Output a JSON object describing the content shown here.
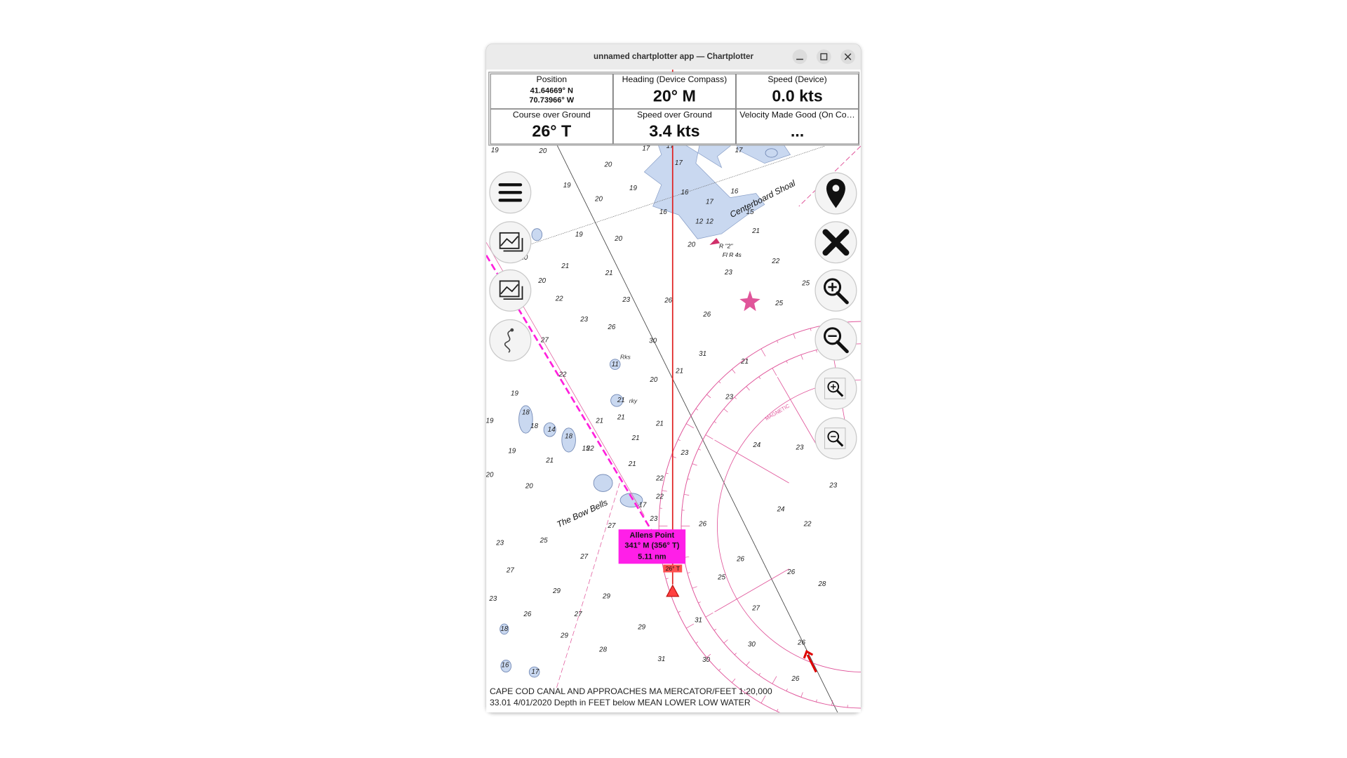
{
  "window": {
    "title": "unnamed chartplotter app — Chartplotter"
  },
  "instruments": [
    {
      "label": "Position",
      "lines": [
        "41.64669° N",
        "70.73966° W"
      ]
    },
    {
      "label": "Heading (Device Compass)",
      "value": "20° M"
    },
    {
      "label": "Speed (Device)",
      "value": "0.0 kts"
    },
    {
      "label": "Course over Ground",
      "value": "26° T"
    },
    {
      "label": "Speed over Ground",
      "value": "3.4 kts"
    },
    {
      "label": "Velocity Made Good (On Co…",
      "value": "..."
    }
  ],
  "waypoint": {
    "name": "Allens Point",
    "bearing": "341° M (356° T)",
    "distance": "5.11 nm"
  },
  "heading_marker": "26° T",
  "chart_labels": {
    "shoal": "Centerboard Shoal",
    "bells": "The Bow Bells",
    "light_name": "R \"2\"",
    "light_char": "Fl R 4s",
    "rose": "MAGNETIC",
    "rocks": "Rks",
    "rocky": "rky"
  },
  "soundings": [
    "19",
    "20",
    "19",
    "20",
    "20",
    "19",
    "17",
    "17",
    "17",
    "16",
    "16",
    "17",
    "16",
    "17",
    "15",
    "21",
    "20",
    "23",
    "22",
    "25",
    "25",
    "19",
    "20",
    "20",
    "20",
    "21",
    "21",
    "22",
    "23",
    "26",
    "23",
    "26",
    "30",
    "26",
    "31",
    "21",
    "27",
    "22",
    "20",
    "23",
    "21",
    "24",
    "23",
    "23",
    "19",
    "19",
    "21",
    "21",
    "21",
    "21",
    "21",
    "23",
    "22",
    "21",
    "19",
    "20",
    "20",
    "22",
    "22",
    "21",
    "23",
    "27",
    "26",
    "23",
    "25",
    "27",
    "27",
    "25",
    "26",
    "26",
    "28",
    "24",
    "22",
    "29",
    "29",
    "23",
    "26",
    "27",
    "31",
    "27",
    "18",
    "29",
    "29",
    "28",
    "30",
    "30",
    "26",
    "31",
    "16",
    "17",
    "26",
    "18",
    "14",
    "18",
    "15",
    "17",
    "11",
    "18",
    "12",
    "12"
  ],
  "footer": [
    "CAPE COD CANAL AND APPROACHES MA  MERCATOR/FEET  1:20,000",
    "33.01 4/01/2020     Depth in FEET below MEAN LOWER LOW WATER"
  ]
}
